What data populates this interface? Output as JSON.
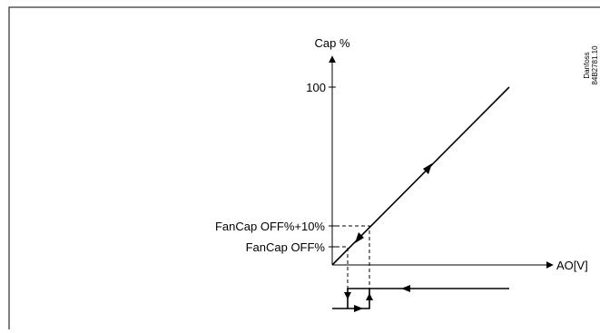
{
  "y_axis_label": "Cap %",
  "x_axis_label": "AO[V]",
  "tick_100": "100",
  "level_upper_label": "FanCap OFF%+10%",
  "level_lower_label": "FanCap OFF%",
  "doc_code_line1": "Danfoss",
  "doc_code_line2": "84B2781.10"
}
